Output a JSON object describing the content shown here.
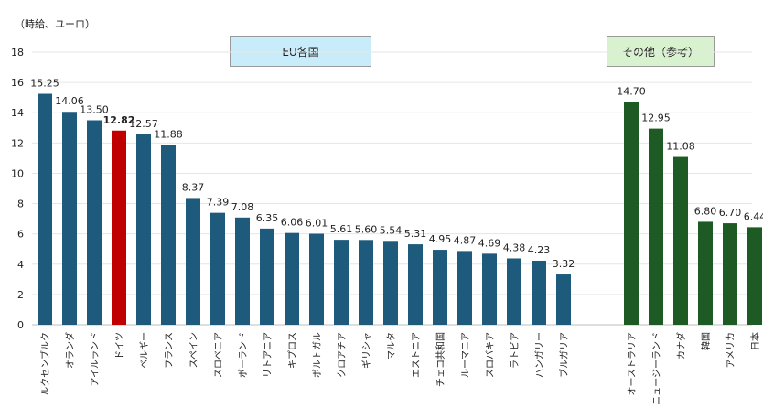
{
  "unit_label": "（時給、ユーロ）",
  "groups": {
    "eu_label": "EU各国",
    "other_label": "その他（参考）"
  },
  "colors": {
    "eu_bar": "#1e5a7c",
    "highlight_bar": "#c00000",
    "other_bar": "#1e5a23",
    "grid": "#e6e6e6",
    "eu_box_bg": "#c9ecfb",
    "other_box_bg": "#d8f2cf"
  },
  "chart_data": {
    "type": "bar",
    "ylim": [
      0,
      18
    ],
    "yticks": [
      0,
      2,
      4,
      6,
      8,
      10,
      12,
      14,
      16,
      18
    ],
    "grid": true,
    "highlight": "ドイツ",
    "categories": [
      "ルクセンブルク",
      "オランダ",
      "アイルランド",
      "ドイツ",
      "ベルギー",
      "フランス",
      "スペイン",
      "スロベニア",
      "ポーランド",
      "リトアニア",
      "キプロス",
      "ポルトガル",
      "クロアチア",
      "ギリシャ",
      "マルタ",
      "エストニア",
      "チェコ共和国",
      "ルーマニア",
      "スロバキア",
      "ラトビア",
      "ハンガリー",
      "ブルガリア",
      "オーストラリア",
      "ニュージーランド",
      "カナダ",
      "韓国",
      "アメリカ",
      "日本"
    ],
    "values": [
      15.25,
      14.06,
      13.5,
      12.82,
      12.57,
      11.88,
      8.37,
      7.39,
      7.08,
      6.35,
      6.06,
      6.01,
      5.61,
      5.6,
      5.54,
      5.31,
      4.95,
      4.87,
      4.69,
      4.38,
      4.23,
      3.32,
      14.7,
      12.95,
      11.08,
      6.8,
      6.7,
      6.44
    ],
    "value_labels": [
      "15.25",
      "14.06",
      "13.50",
      "12.82",
      "12.57",
      "11.88",
      "8.37",
      "7.39",
      "7.08",
      "6.35",
      "6.06",
      "6.01",
      "5.61",
      "5.60",
      "5.54",
      "5.31",
      "4.95",
      "4.87",
      "4.69",
      "4.38",
      "4.23",
      "3.32",
      "14.70",
      "12.95",
      "11.08",
      "6.80",
      "6.70",
      "6.44"
    ],
    "group": [
      "eu",
      "eu",
      "eu",
      "eu",
      "eu",
      "eu",
      "eu",
      "eu",
      "eu",
      "eu",
      "eu",
      "eu",
      "eu",
      "eu",
      "eu",
      "eu",
      "eu",
      "eu",
      "eu",
      "eu",
      "eu",
      "eu",
      "other",
      "other",
      "other",
      "other",
      "other",
      "other"
    ]
  }
}
